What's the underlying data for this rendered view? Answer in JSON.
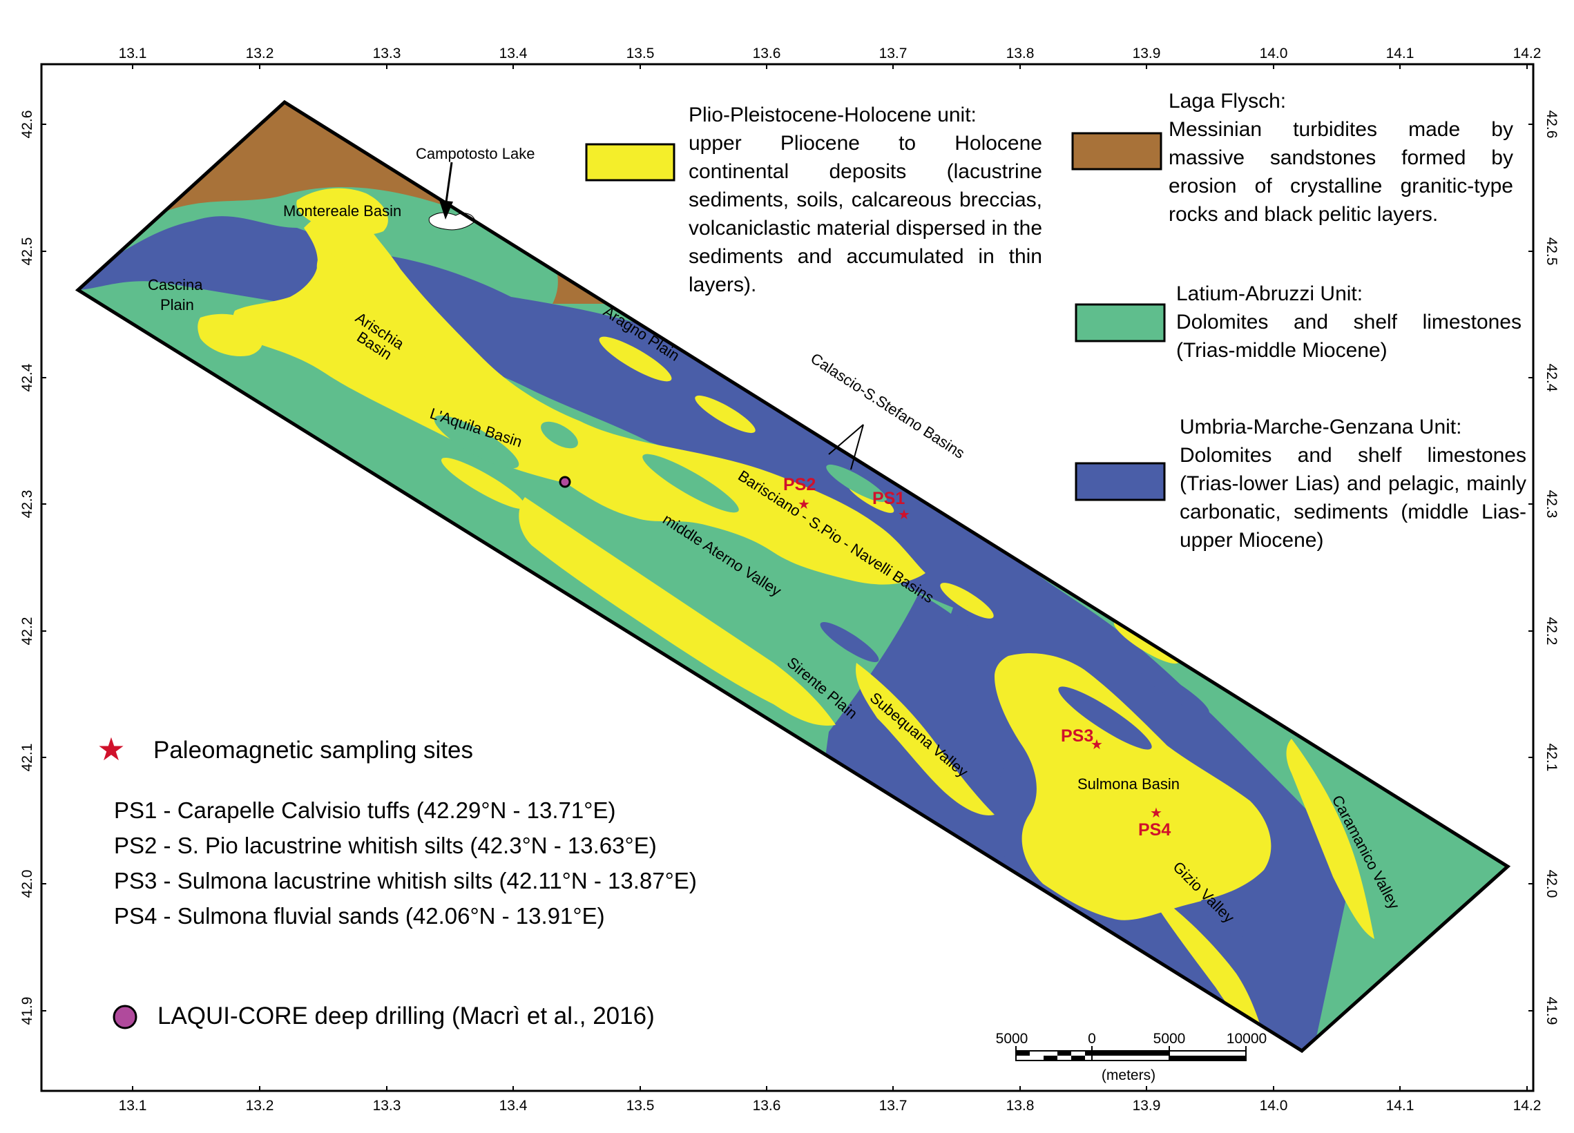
{
  "map": {
    "lon_ticks": [
      "13.1",
      "13.2",
      "13.3",
      "13.4",
      "13.5",
      "13.6",
      "13.7",
      "13.8",
      "13.9",
      "14.0",
      "14.1",
      "14.2"
    ],
    "lat_ticks": [
      "42.6",
      "42.5",
      "42.4",
      "42.3",
      "42.2",
      "42.1",
      "42.0",
      "41.9"
    ],
    "colors": {
      "plio": "#f4ee2a",
      "laga": "#a87239",
      "latium": "#5fbe8d",
      "umbria": "#4a5ea8",
      "site_marker": "#d0112b",
      "drill_marker": "#b04a9c"
    },
    "places": {
      "campotosto": "Campotosto Lake",
      "montereale": "Montereale Basin",
      "cascina_1": "Cascina",
      "cascina_2": "Plain",
      "arischia_1": "Arischia",
      "arischia_2": "Basin",
      "aragno": "Aragno Plain",
      "calascio": "Calascio-S.Stefano Basins",
      "laquila": "L'Aquila Basin",
      "barisciano": "Barisciano - S.Pio - Navelli Basins",
      "aterno": "middle Aterno Valley",
      "sirente": "Sirente Plain",
      "subequana": "Subequana Valley",
      "sulmona": "Sulmona Basin",
      "gizio": "Gizio Valley",
      "caramanico": "Caramanico Valley"
    },
    "sites": {
      "ps1": "PS1",
      "ps2": "PS2",
      "ps3": "PS3",
      "ps4": "PS4"
    },
    "scale": {
      "labels": [
        "5000",
        "0",
        "5000",
        "10000"
      ],
      "unit": "(meters)"
    }
  },
  "legend": {
    "plio": {
      "title": "Plio-Pleistocene-Holocene unit:",
      "text": "upper Pliocene to Holocene continental deposits (lacustrine sediments, soils, calcareous breccias, volcaniclastic material dispersed in the sediments and accumulated in thin layers)."
    },
    "laga": {
      "title": "Laga Flysch:",
      "text": "Messinian turbidites made by massive sandstones formed by erosion of crystalline granitic-type rocks and black pelitic layers."
    },
    "latium": {
      "title": "Latium-Abruzzi Unit:",
      "text": "Dolomites and shelf limestones (Trias-middle Miocene)"
    },
    "umbria": {
      "title": "Umbria-Marche-Genzana Unit:",
      "text": "Dolomites and shelf limestones (Trias-lower Lias) and pelagic, mainly carbonatic, sediments (middle Lias-upper Miocene)"
    }
  },
  "symbols": {
    "paleo": "Paleomagnetic sampling sites",
    "drill": "LAQUI-CORE deep drilling (Macrì et al., 2016)"
  },
  "site_list": [
    "PS1 - Carapelle Calvisio tuffs (42.29°N - 13.71°E)",
    "PS2 - S. Pio lacustrine whitish silts (42.3°N - 13.63°E)",
    "PS3 - Sulmona lacustrine whitish silts (42.11°N - 13.87°E)",
    "PS4 - Sulmona fluvial sands (42.06°N - 13.91°E)"
  ]
}
